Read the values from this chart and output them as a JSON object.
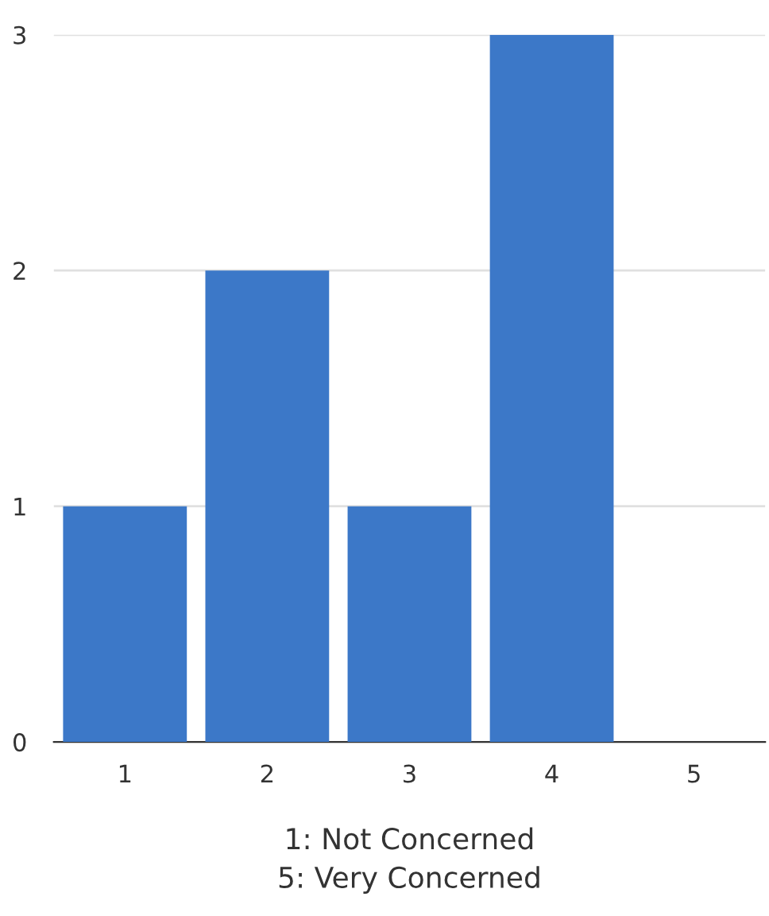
{
  "chart_data": {
    "type": "bar",
    "categories": [
      "1",
      "2",
      "3",
      "4",
      "5"
    ],
    "values": [
      1,
      2,
      1,
      3,
      0
    ],
    "color": "#3c78c8",
    "ylim": [
      0,
      3
    ],
    "yticks": [
      0,
      1,
      2,
      3
    ],
    "grid": "y",
    "xlabel": "1: Not Concerned\n5: Very Concerned"
  }
}
